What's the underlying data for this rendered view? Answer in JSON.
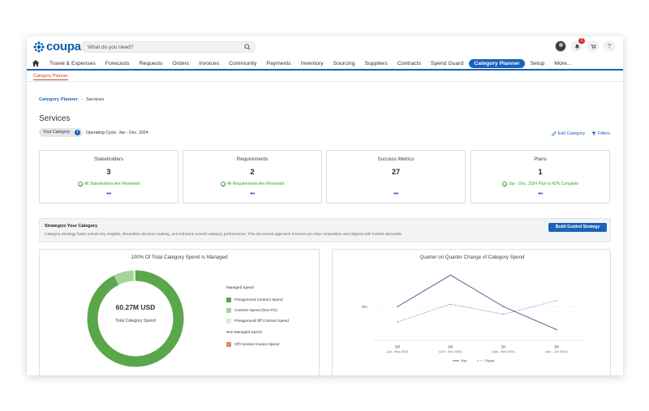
{
  "app": {
    "logo_text": "coupa",
    "search_placeholder": "What do you need?",
    "notification_count": "1",
    "help_label": "?"
  },
  "nav": {
    "items": [
      {
        "label": "Travel & Expenses"
      },
      {
        "label": "Forecasts"
      },
      {
        "label": "Requests"
      },
      {
        "label": "Orders"
      },
      {
        "label": "Invoices"
      },
      {
        "label": "Community"
      },
      {
        "label": "Payments"
      },
      {
        "label": "Inventory"
      },
      {
        "label": "Sourcing"
      },
      {
        "label": "Suppliers"
      },
      {
        "label": "Contracts"
      },
      {
        "label": "Spend Guard"
      },
      {
        "label": "Category Planner",
        "active": true
      },
      {
        "label": "Setup"
      },
      {
        "label": "More..."
      }
    ],
    "subtab": "Category Planner"
  },
  "breadcrumb": {
    "parent": "Category Planner",
    "separator": "›",
    "current": "Services"
  },
  "page": {
    "title": "Services",
    "category_pill": "Your Category",
    "info_icon": "i",
    "operating_cycle": "Operating Cycle: Jan - Dec, 2024",
    "edit_label": "Edit Category",
    "filters_label": "Filters"
  },
  "cards": [
    {
      "title": "Stakeholders",
      "value": "3",
      "status": "All Stakeholders Are Reviewed",
      "more": "•••"
    },
    {
      "title": "Requirements",
      "value": "2",
      "status": "All Requirements Are Reviewed",
      "more": "•••"
    },
    {
      "title": "Success Metrics",
      "value": "27",
      "status": "",
      "more": "•••"
    },
    {
      "title": "Plans",
      "value": "1",
      "status": "Jan - Dec, 2024 Plan Is 42% Complete",
      "more": "•••"
    }
  ],
  "strategy": {
    "title": "Strategize Your Category",
    "description": "Category Strategy helps unlock key insights, streamline decision-making, and enhance overall category performance. This structured approach ensures you stay competitive and aligned with market demands.",
    "button": "Build Guided Strategy"
  },
  "donut_panel": {
    "title": "100% Of Total Category Spend Is Managed",
    "center_value": "60.27M USD",
    "center_label": "Total Category Spend",
    "legend": {
      "managed_header": "Managed Spend",
      "managed": [
        {
          "label": "Preapproved Contract Spend",
          "color": "#5aa64a"
        },
        {
          "label": "Contract Spend (Non PO)",
          "color": "#a6d39a"
        },
        {
          "label": "Preapproved Off Contract Spend",
          "color": "#dbecd4"
        }
      ],
      "non_managed_header": "Non-Managed Spend",
      "non_managed": [
        {
          "label": "Off Contract Invoice Spend",
          "color": "#e8895c"
        }
      ]
    }
  },
  "chart_data": {
    "type": "line",
    "title": "Quarter on Quarter Change of Category Spend",
    "y_reference_label": "0%",
    "categories": [
      {
        "q": "Q3",
        "range": "(Jul - Sep 2023)"
      },
      {
        "q": "Q4",
        "range": "(Oct - Dec 2023)"
      },
      {
        "q": "Q1",
        "range": "(Jan - Mar 2024)"
      },
      {
        "q": "Q2",
        "range": "(Apr - Jun 2024)"
      }
    ],
    "series": [
      {
        "name": "You",
        "color": "#5b4f8c",
        "style": "solid",
        "values": [
          0.0,
          0.62,
          0.0,
          -0.45
        ]
      },
      {
        "name": "Peers",
        "color": "#7aa9d6",
        "style": "dashed",
        "values": [
          -0.3,
          0.05,
          -0.15,
          0.12
        ]
      }
    ],
    "ylim": [
      -0.6,
      0.8
    ]
  }
}
